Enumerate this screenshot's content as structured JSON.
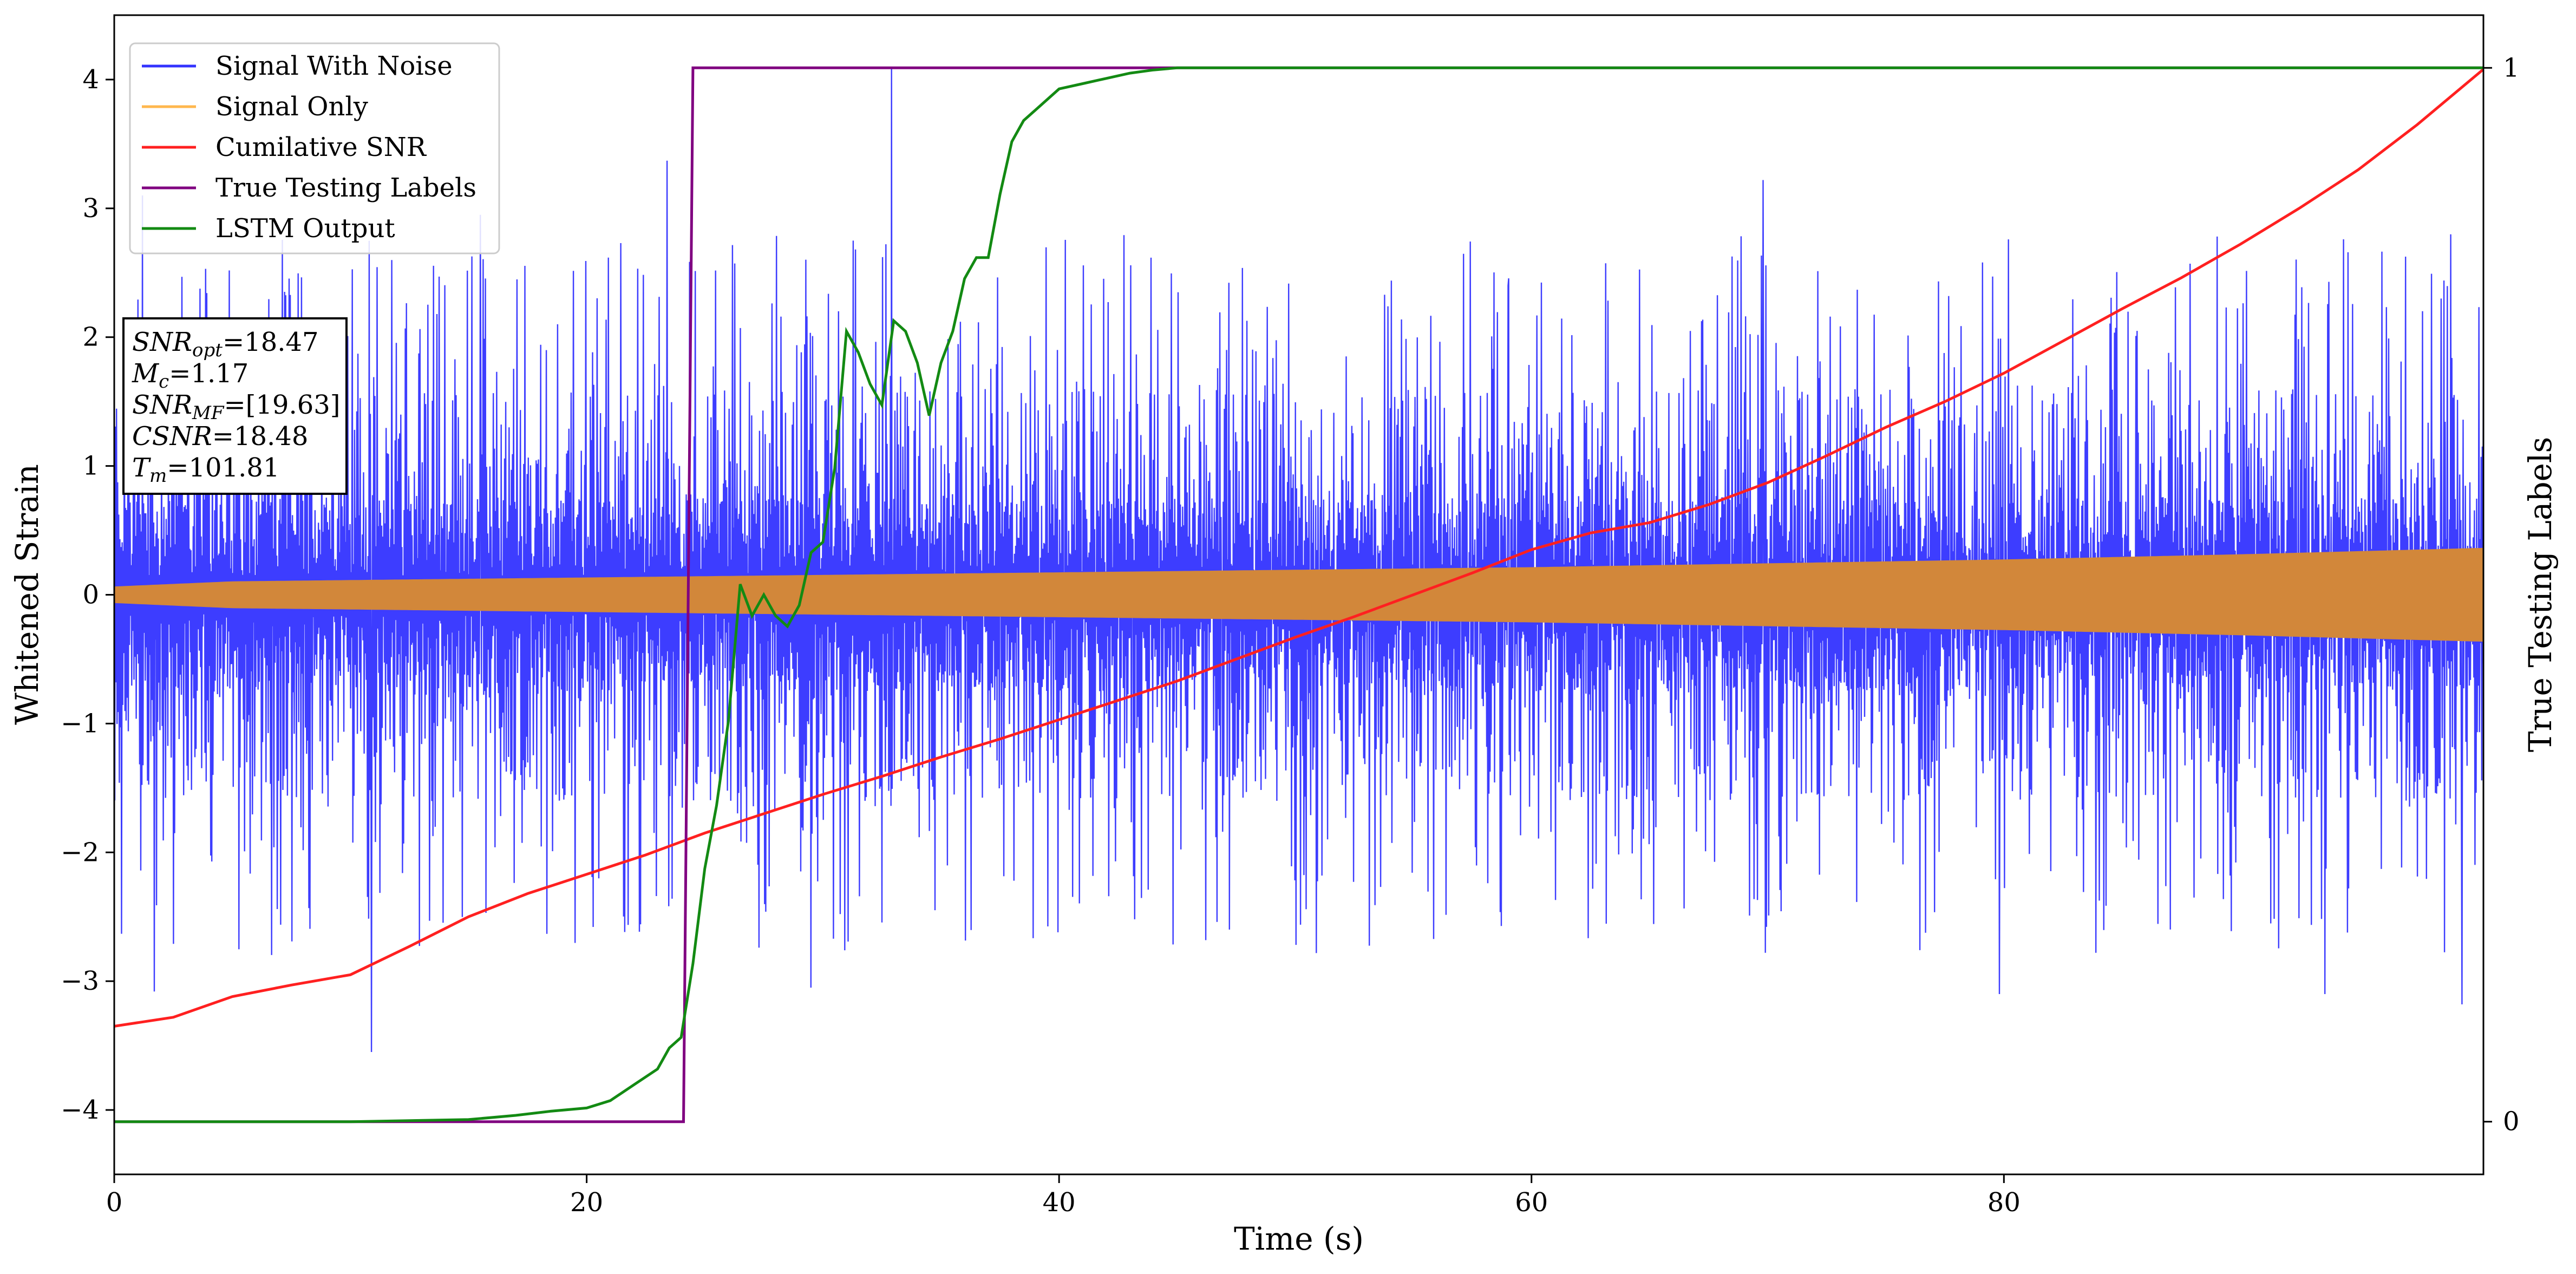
{
  "chart_data": {
    "type": "line",
    "xlabel": "Time (s)",
    "ylabel_left": "Whitened Strain",
    "ylabel_right": "True Testing Labels",
    "xlim": [
      0,
      100.3
    ],
    "ylim_left": [
      -4.5,
      4.5
    ],
    "ylim_right": [
      -0.05,
      1.05
    ],
    "x_ticks": [
      0,
      20,
      40,
      60,
      80
    ],
    "y_ticks_left": [
      -4,
      -3,
      -2,
      -1,
      0,
      1,
      2,
      3,
      4
    ],
    "y_ticks_right": [
      0,
      1
    ],
    "grid": false,
    "legend": {
      "placement": "top-left",
      "entries": [
        {
          "label": "Signal With Noise",
          "color": "#3333ff"
        },
        {
          "label": "Signal Only",
          "color": "#ffb74d"
        },
        {
          "label": "Cumilative SNR",
          "color": "#ff2020"
        },
        {
          "label": "True Testing Labels",
          "color": "#800080"
        },
        {
          "label": "LSTM Output",
          "color": "#138a13"
        }
      ]
    },
    "annotation": [
      {
        "name": "SNR",
        "sub": "opt",
        "value": "=18.47"
      },
      {
        "name": "M",
        "sub": "c",
        "value": "=1.17"
      },
      {
        "name": "SNR",
        "sub": "MF",
        "value": "=[19.63]"
      },
      {
        "name": "CSNR",
        "sub": "",
        "value": "=18.48"
      },
      {
        "name": "T",
        "sub": "m",
        "value": "=101.81"
      }
    ],
    "series": [
      {
        "name": "Signal With Noise",
        "axis": "left",
        "color": "#3333ff",
        "style": "dense-noise",
        "typical_abs_max": 2.0,
        "peaks": [
          [
            1.2,
            3.1
          ],
          [
            32.9,
            4.1
          ],
          [
            23.4,
            3.37
          ],
          [
            69.8,
            3.22
          ],
          [
            15.5,
            2.95
          ],
          [
            59.0,
            2.4
          ],
          [
            98.5,
            2.3
          ],
          [
            10.9,
            -3.55
          ],
          [
            1.7,
            -3.08
          ],
          [
            29.5,
            -3.05
          ],
          [
            93.6,
            -3.1
          ],
          [
            79.8,
            -3.1
          ],
          [
            99.4,
            -3.18
          ]
        ]
      },
      {
        "name": "Signal Only",
        "axis": "left",
        "color": "#d2873a",
        "style": "envelope",
        "x": [
          0,
          5,
          10,
          20,
          30,
          40,
          50,
          60,
          70,
          80,
          90,
          100.3
        ],
        "envelope": [
          0.06,
          0.1,
          0.11,
          0.13,
          0.15,
          0.17,
          0.19,
          0.21,
          0.24,
          0.27,
          0.31,
          0.36
        ]
      },
      {
        "name": "Cumilative SNR",
        "axis": "left",
        "color": "#ff2020",
        "x": [
          0,
          2.5,
          5,
          7.5,
          10,
          12.5,
          15,
          17.5,
          20,
          22.5,
          25,
          27.5,
          30,
          32.5,
          35,
          37.5,
          40,
          42.5,
          45,
          47.5,
          50,
          52.5,
          55,
          57.5,
          60,
          62.5,
          65,
          67.5,
          70,
          72.5,
          75,
          77.5,
          80,
          82.5,
          85,
          87.5,
          90,
          92.5,
          95,
          97.5,
          100.3
        ],
        "y": [
          -3.35,
          -3.28,
          -3.12,
          -3.03,
          -2.95,
          -2.73,
          -2.5,
          -2.32,
          -2.17,
          -2.02,
          -1.85,
          -1.7,
          -1.55,
          -1.41,
          -1.26,
          -1.12,
          -0.97,
          -0.82,
          -0.67,
          -0.5,
          -0.33,
          -0.17,
          0.0,
          0.17,
          0.35,
          0.48,
          0.56,
          0.7,
          0.87,
          1.08,
          1.3,
          1.5,
          1.72,
          1.97,
          2.22,
          2.46,
          2.72,
          3.0,
          3.3,
          3.65,
          4.08
        ]
      },
      {
        "name": "True Testing Labels",
        "axis": "right",
        "color": "#800080",
        "x": [
          0,
          24.1,
          24.5,
          100.3
        ],
        "y": [
          0,
          0,
          1,
          1
        ]
      },
      {
        "name": "LSTM Output",
        "axis": "right",
        "color": "#138a13",
        "x": [
          0,
          10,
          15,
          17,
          18.5,
          20,
          21,
          22,
          23,
          23.5,
          24,
          24.5,
          25,
          25.5,
          26,
          26.5,
          27,
          27.5,
          28,
          28.5,
          29,
          29.5,
          30,
          30.5,
          31,
          31.5,
          32,
          32.5,
          33,
          33.5,
          34,
          34.5,
          35,
          35.5,
          36,
          36.5,
          37,
          37.5,
          38,
          38.5,
          39,
          40,
          41,
          42,
          43,
          44,
          45,
          47,
          50,
          100.3
        ],
        "y": [
          0,
          0,
          0.002,
          0.006,
          0.01,
          0.013,
          0.02,
          0.035,
          0.05,
          0.07,
          0.08,
          0.15,
          0.24,
          0.3,
          0.38,
          0.51,
          0.48,
          0.5,
          0.48,
          0.47,
          0.49,
          0.54,
          0.55,
          0.62,
          0.75,
          0.73,
          0.7,
          0.68,
          0.76,
          0.75,
          0.72,
          0.67,
          0.72,
          0.75,
          0.8,
          0.82,
          0.82,
          0.88,
          0.93,
          0.95,
          0.96,
          0.98,
          0.985,
          0.99,
          0.995,
          0.998,
          1.0,
          1.0,
          1.0,
          1.0
        ]
      }
    ]
  }
}
